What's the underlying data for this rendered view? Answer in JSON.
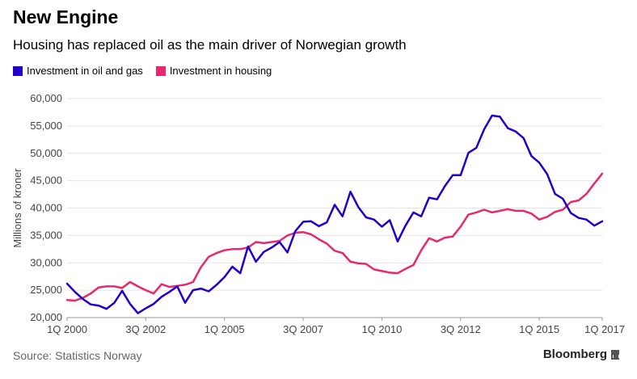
{
  "header": {
    "title": "New Engine",
    "subtitle": "Housing has replaced oil as the main driver of Norwegian growth"
  },
  "footer": {
    "source": "Source: Statistics Norway",
    "brand": "Bloomberg"
  },
  "chart_data": {
    "type": "line",
    "ylabel": "Millions of kroner",
    "ylim": [
      20000,
      60000
    ],
    "yticks": [
      20000,
      25000,
      30000,
      35000,
      40000,
      45000,
      50000,
      55000,
      60000
    ],
    "ytick_labels": [
      "20,000",
      "25,000",
      "30,000",
      "35,000",
      "40,000",
      "45,000",
      "50,000",
      "55,000",
      "60,000"
    ],
    "xtick_labels": [
      "1Q 2000",
      "3Q 2002",
      "1Q 2005",
      "3Q 2007",
      "1Q 2010",
      "3Q 2012",
      "1Q 2015",
      "1Q 2017"
    ],
    "grid": true,
    "legend_position": "top-left",
    "x": [
      "1Q 2000",
      "2Q 2000",
      "3Q 2000",
      "4Q 2000",
      "1Q 2001",
      "2Q 2001",
      "3Q 2001",
      "4Q 2001",
      "1Q 2002",
      "2Q 2002",
      "3Q 2002",
      "4Q 2002",
      "1Q 2003",
      "2Q 2003",
      "3Q 2003",
      "4Q 2003",
      "1Q 2004",
      "2Q 2004",
      "3Q 2004",
      "4Q 2004",
      "1Q 2005",
      "2Q 2005",
      "3Q 2005",
      "4Q 2005",
      "1Q 2006",
      "2Q 2006",
      "3Q 2006",
      "4Q 2006",
      "1Q 2007",
      "2Q 2007",
      "3Q 2007",
      "4Q 2007",
      "1Q 2008",
      "2Q 2008",
      "3Q 2008",
      "4Q 2008",
      "1Q 2009",
      "2Q 2009",
      "3Q 2009",
      "4Q 2009",
      "1Q 2010",
      "2Q 2010",
      "3Q 2010",
      "4Q 2010",
      "1Q 2011",
      "2Q 2011",
      "3Q 2011",
      "4Q 2011",
      "1Q 2012",
      "2Q 2012",
      "3Q 2012",
      "4Q 2012",
      "1Q 2013",
      "2Q 2013",
      "3Q 2013",
      "4Q 2013",
      "1Q 2014",
      "2Q 2014",
      "3Q 2014",
      "4Q 2014",
      "1Q 2015",
      "2Q 2015",
      "3Q 2015",
      "4Q 2015",
      "1Q 2016",
      "2Q 2016",
      "3Q 2016",
      "4Q 2016",
      "1Q 2017"
    ],
    "series": [
      {
        "name": "Investment in oil and gas",
        "color": "#2200cc",
        "values": [
          26200,
          24700,
          23400,
          22400,
          22200,
          21600,
          22700,
          24900,
          22500,
          20800,
          21700,
          22500,
          23800,
          24700,
          25700,
          22700,
          25000,
          25300,
          24800,
          26000,
          27400,
          29300,
          28100,
          33000,
          30200,
          32000,
          32800,
          33800,
          31900,
          35800,
          37500,
          37600,
          36700,
          37400,
          40600,
          38500,
          43000,
          40200,
          38300,
          37900,
          36600,
          37800,
          33900,
          36800,
          39200,
          38500,
          41900,
          41600,
          44000,
          46000,
          46000,
          50100,
          51000,
          54400,
          56900,
          56700,
          54600,
          54000,
          52800,
          49500,
          48300,
          46200,
          42600,
          41700,
          39100,
          38200,
          37900,
          36800,
          37600
        ]
      },
      {
        "name": "Investment in housing",
        "color": "#e8286e",
        "values": [
          23200,
          23100,
          23600,
          24400,
          25500,
          25700,
          25700,
          25400,
          26500,
          25700,
          25000,
          24400,
          26100,
          25600,
          25800,
          26000,
          26500,
          29200,
          31100,
          31800,
          32300,
          32500,
          32500,
          32800,
          33800,
          33600,
          33800,
          34000,
          35000,
          35500,
          35600,
          35200,
          34300,
          33500,
          32200,
          31800,
          30200,
          29900,
          29800,
          28800,
          28500,
          28200,
          28100,
          28900,
          29600,
          32300,
          34500,
          33900,
          34600,
          34800,
          36600,
          38800,
          39200,
          39700,
          39200,
          39500,
          39800,
          39500,
          39500,
          39000,
          37900,
          38400,
          39300,
          39700,
          41100,
          41400,
          42600,
          44500,
          46300
        ]
      }
    ]
  }
}
